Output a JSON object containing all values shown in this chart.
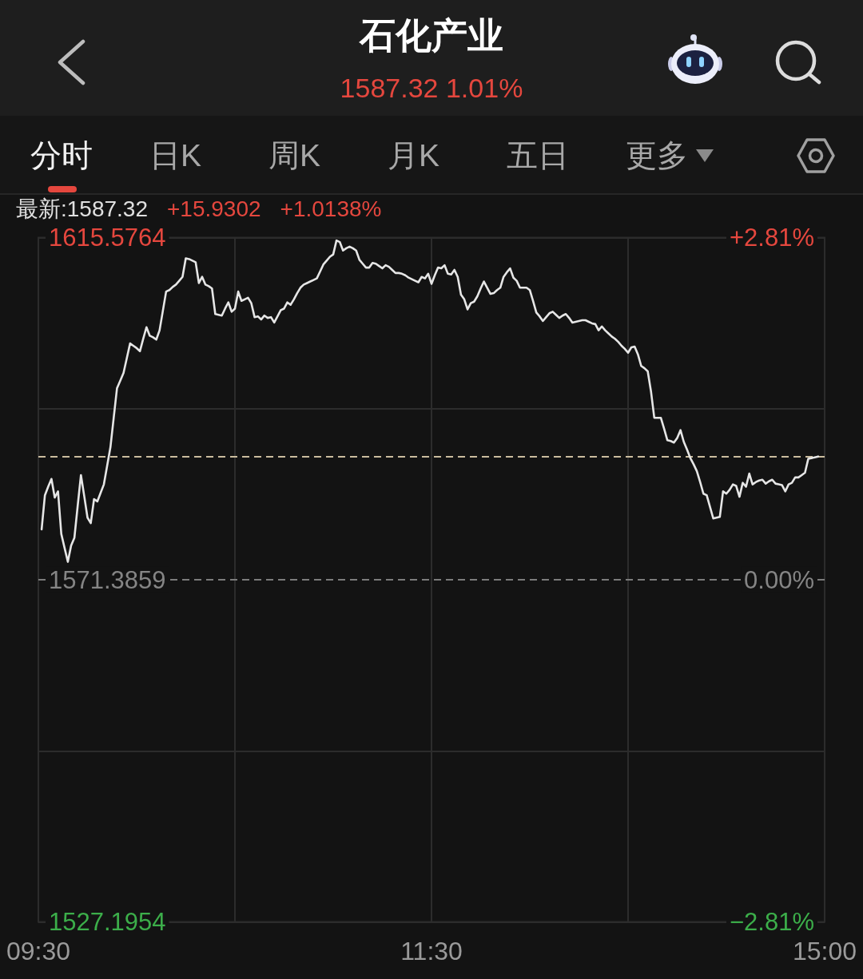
{
  "chart_data": {
    "type": "line",
    "title": "石化产业",
    "subtitle": "1587.32 1.01%",
    "annotations": [
      "分时",
      "日K",
      "周K",
      "月K",
      "五日",
      "更多",
      "最新:1587.32",
      "+15.9302",
      "+1.0138%"
    ],
    "categories": [
      "09:30",
      null,
      null,
      null,
      null,
      null,
      null,
      null,
      null,
      null,
      null,
      null,
      null,
      null,
      null,
      null,
      null,
      null,
      null,
      null,
      null,
      null,
      null,
      null,
      null,
      null,
      null,
      null,
      null,
      null,
      null,
      null,
      null,
      null,
      null,
      null,
      null,
      null,
      null,
      null,
      null,
      null,
      null,
      null,
      null,
      null,
      null,
      null,
      null,
      null,
      null,
      null,
      null,
      null,
      null,
      null,
      null,
      null,
      null,
      null,
      null,
      null,
      null,
      null,
      null,
      null,
      null,
      null,
      null,
      null,
      null,
      null,
      null,
      null,
      null,
      null,
      null,
      null,
      null,
      null,
      null,
      null,
      null,
      null,
      null,
      null,
      null,
      null,
      null,
      null,
      null,
      null,
      null,
      null,
      null,
      null,
      null,
      null,
      null,
      null,
      null,
      null,
      null,
      null,
      null,
      null,
      null,
      null,
      null,
      null,
      null,
      null,
      null,
      null,
      null,
      null,
      null,
      null,
      null,
      null,
      "11:30",
      null,
      null,
      null,
      null,
      null,
      null,
      null,
      null,
      null,
      null,
      null,
      null,
      null,
      null,
      null,
      null,
      null,
      null,
      null,
      null,
      null,
      null,
      null,
      null,
      null,
      null,
      null,
      null,
      null,
      null,
      null,
      null,
      null,
      null,
      null,
      null,
      null,
      null,
      null,
      null,
      null,
      null,
      null,
      null,
      null,
      null,
      null,
      null,
      null,
      null,
      null,
      null,
      null,
      null,
      null,
      null,
      null,
      null,
      null,
      null,
      null,
      null,
      null,
      null,
      null,
      null,
      null,
      null,
      null,
      null,
      null,
      null,
      null,
      null,
      null,
      null,
      null,
      null,
      null,
      null,
      null,
      null,
      null,
      null,
      null,
      null,
      null,
      null,
      null,
      null,
      null,
      null,
      null,
      null,
      null,
      null,
      null,
      null,
      null,
      null,
      null,
      null,
      null,
      null,
      null,
      null,
      null,
      null,
      null,
      null,
      null,
      null,
      null,
      null,
      null,
      null,
      null,
      null,
      null,
      "15:00"
    ],
    "values": [
      null,
      1577.9,
      1582.3,
      1583.4,
      1584.4,
      1582.0,
      1582.8,
      1577.3,
      1575.5,
      1573.7,
      1575.8,
      1576.8,
      1580.9,
      1584.9,
      1582.2,
      1579.4,
      1578.7,
      1581.8,
      1581.5,
      1582.6,
      1583.7,
      1586.1,
      1588.5,
      1592.3,
      1596.1,
      1597.1,
      1598.1,
      1600.0,
      1601.9,
      1601.6,
      1601.3,
      1600.9,
      1602.5,
      1604.0,
      1602.9,
      1602.7,
      1602.4,
      1603.6,
      1606.1,
      1608.6,
      1608.8,
      1609.2,
      1609.5,
      1610.0,
      1610.5,
      1612.9,
      1612.8,
      1612.6,
      1612.4,
      1609.7,
      1610.5,
      1609.5,
      1609.3,
      1609.0,
      1605.7,
      1605.6,
      1605.5,
      1606.4,
      1607.2,
      1606.0,
      1606.4,
      1608.6,
      1607.4,
      1607.6,
      1607.8,
      1607.1,
      1605.3,
      1605.4,
      1605.0,
      1605.5,
      1605.2,
      1605.3,
      1604.6,
      1605.4,
      1606.2,
      1606.4,
      1607.2,
      1606.9,
      1607.6,
      1608.4,
      1609.1,
      1609.5,
      1609.7,
      1609.9,
      1610.1,
      1610.3,
      1611.2,
      1612.1,
      1612.6,
      1613.1,
      1613.4,
      1615.2,
      1615.0,
      1613.9,
      1614.2,
      1614.4,
      1614.2,
      1613.9,
      1612.7,
      1612.2,
      1611.7,
      1611.7,
      1612.3,
      1612.2,
      1611.9,
      1611.6,
      1612.0,
      1611.8,
      1611.4,
      1611.0,
      1611.0,
      1610.9,
      1610.7,
      1610.4,
      1610.2,
      1610.0,
      1609.8,
      1610.5,
      1610.3,
      1610.9,
      1609.6,
      1610.7,
      1611.7,
      1611.6,
      1612.0,
      1610.9,
      1610.8,
      1611.4,
      1610.5,
      1608.2,
      1607.6,
      1606.3,
      1607.1,
      1607.3,
      1608.0,
      1609.0,
      1609.9,
      1609.1,
      1608.3,
      1608.4,
      1608.8,
      1609.1,
      1610.5,
      1611.1,
      1611.6,
      1610.4,
      1610.0,
      1609.1,
      1609.1,
      1609.1,
      1608.8,
      1607.4,
      1605.9,
      1605.4,
      1604.8,
      1605.3,
      1605.8,
      1606.0,
      1605.6,
      1605.2,
      1605.5,
      1605.7,
      1605.2,
      1604.6,
      1604.7,
      1604.8,
      1604.9,
      1604.9,
      1604.7,
      1604.5,
      1604.4,
      1603.6,
      1604.1,
      1603.6,
      1603.2,
      1602.8,
      1602.5,
      1602.1,
      1601.6,
      1601.2,
      1600.7,
      1601.4,
      1601.5,
      1600.5,
      1599.0,
      1598.7,
      1598.3,
      1595.7,
      1592.3,
      1592.3,
      1592.3,
      1590.9,
      1589.4,
      1589.3,
      1589.1,
      1589.7,
      1590.7,
      1589.2,
      1588.2,
      1587.1,
      1586.3,
      1585.4,
      1584.0,
      1582.5,
      1582.3,
      1580.8,
      1579.3,
      1579.4,
      1579.5,
      1582.8,
      1582.5,
      1583.0,
      1583.7,
      1583.5,
      1582.1,
      1583.9,
      1583.4,
      1585.1,
      1583.7,
      1584.0,
      1584.2,
      1584.3,
      1583.8,
      1584.1,
      1584.3,
      1583.8,
      1583.7,
      1583.6,
      1582.8,
      1583.7,
      1583.9,
      1584.6,
      1584.6,
      1584.9,
      1585.2,
      1587.0,
      1587.1,
      1587.2,
      1587.3,
      null,
      null
    ],
    "color": "#e6e6e6",
    "marker": "none",
    "grid": true,
    "ylim": [
      1527.1954,
      1615.5764
    ],
    "yticks": [
      1527.1954,
      {
        "value": 1549.29065,
        "label": null
      },
      1571.3859,
      {
        "value": 1593.48115,
        "label": null
      },
      1615.5764
    ],
    "y2lim": [
      -2.81,
      2.81
    ],
    "y2ticks": [
      {
        "value": -2.81,
        "label": "−2.81%"
      },
      {
        "value": 0,
        "label": "0.00%"
      },
      {
        "value": 2.81,
        "label": "+2.81%"
      }
    ],
    "ref_lines": [
      {
        "axis": "y",
        "value": 1571.3859,
        "color": "#7c7c7c",
        "line_style": "dashed"
      },
      {
        "axis": "y",
        "value": 1587.32,
        "color": "#cbbd9f",
        "line_style": "dashed"
      }
    ]
  }
}
